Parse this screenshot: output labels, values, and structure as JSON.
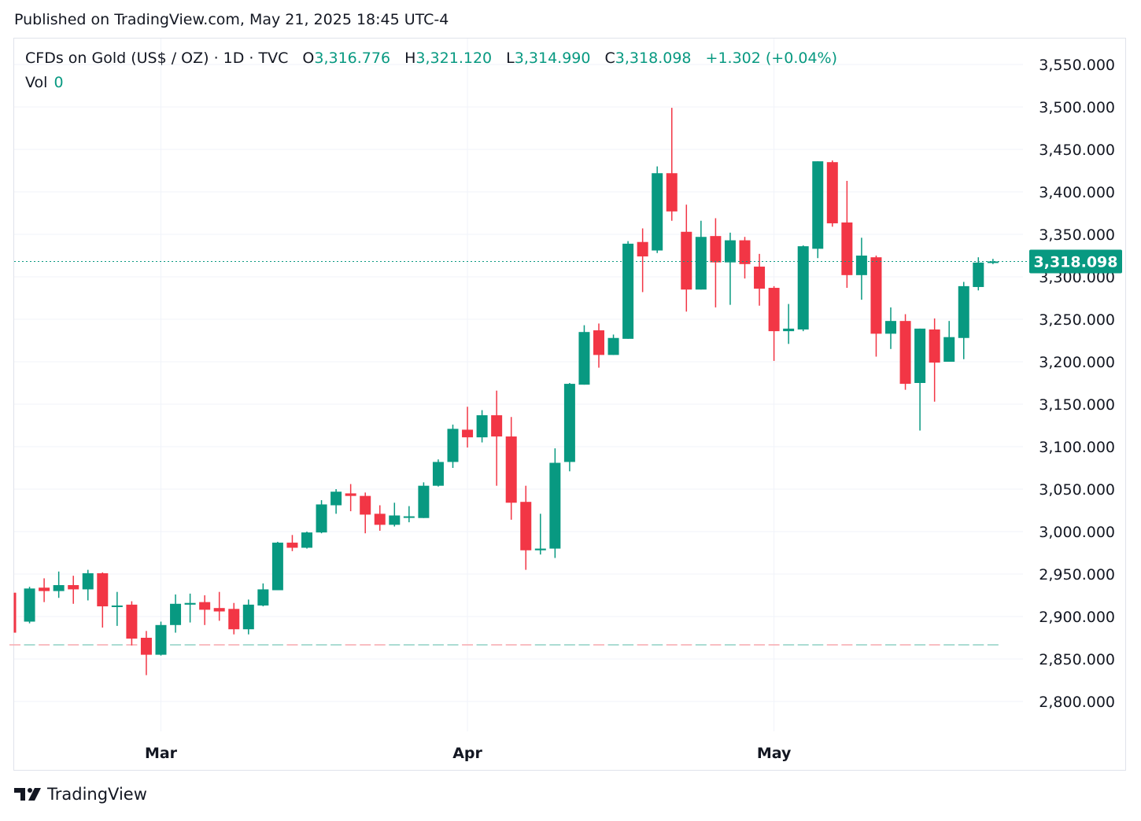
{
  "published": "Published on TradingView.com, May 21, 2025 18:45 UTC-4",
  "legend": {
    "symbol": "CFDs on Gold (US$ / OZ) · 1D · TVC",
    "o_label": "O",
    "o": "3,316.776",
    "h_label": "H",
    "h": "3,321.120",
    "l_label": "L",
    "l": "3,314.990",
    "c_label": "C",
    "c": "3,318.098",
    "change": "+1.302 (+0.04%)",
    "vol_label": "Vol",
    "vol": "0"
  },
  "footer": {
    "brand": "TradingView"
  },
  "colors": {
    "up": "#089981",
    "down": "#F23645",
    "grid": "#f0f3fa",
    "text": "#131722"
  },
  "chart_data": {
    "type": "candlestick",
    "title": "",
    "ylim": [
      2770,
      3570
    ],
    "y_ticks": [
      "3,550.000",
      "3,500.000",
      "3,450.000",
      "3,400.000",
      "3,350.000",
      "3,300.000",
      "3,250.000",
      "3,200.000",
      "3,150.000",
      "3,100.000",
      "3,050.000",
      "3,000.000",
      "2,950.000",
      "2,900.000",
      "2,850.000",
      "2,800.000"
    ],
    "y_tick_values": [
      3550,
      3500,
      3450,
      3400,
      3350,
      3300,
      3250,
      3200,
      3150,
      3100,
      3050,
      3000,
      2950,
      2900,
      2850,
      2800
    ],
    "x_ticks": [
      {
        "label": "Mar",
        "index": 10
      },
      {
        "label": "Apr",
        "index": 31
      },
      {
        "label": "May",
        "index": 52
      }
    ],
    "last_price": 3318.098,
    "last_price_label": "3,318.098",
    "grid": true,
    "candles": [
      [
        2928,
        2928,
        2881,
        2881
      ],
      [
        2894,
        2935,
        2892,
        2933
      ],
      [
        2934,
        2945,
        2917,
        2930
      ],
      [
        2930,
        2953,
        2922,
        2937
      ],
      [
        2937,
        2948,
        2915,
        2932
      ],
      [
        2932,
        2955,
        2919,
        2951
      ],
      [
        2951,
        2952,
        2887,
        2912
      ],
      [
        2912,
        2929,
        2889,
        2913
      ],
      [
        2914,
        2918,
        2866,
        2874
      ],
      [
        2875,
        2883,
        2831,
        2855
      ],
      [
        2855,
        2894,
        2854,
        2890
      ],
      [
        2890,
        2926,
        2881,
        2915
      ],
      [
        2914,
        2927,
        2893,
        2916
      ],
      [
        2917,
        2925,
        2890,
        2908
      ],
      [
        2910,
        2929,
        2895,
        2906
      ],
      [
        2909,
        2916,
        2879,
        2885
      ],
      [
        2885,
        2920,
        2879,
        2914
      ],
      [
        2913,
        2939,
        2912,
        2932
      ],
      [
        2931,
        2988,
        2931,
        2987
      ],
      [
        2987,
        2996,
        2977,
        2981
      ],
      [
        2981,
        3000,
        2980,
        2999
      ],
      [
        2999,
        3037,
        2998,
        3032
      ],
      [
        3031,
        3050,
        3021,
        3047
      ],
      [
        3045,
        3056,
        3024,
        3042
      ],
      [
        3042,
        3046,
        2998,
        3020
      ],
      [
        3021,
        3031,
        3001,
        3008
      ],
      [
        3008,
        3034,
        3006,
        3019
      ],
      [
        3017,
        3030,
        3011,
        3018
      ],
      [
        3016,
        3058,
        3016,
        3054
      ],
      [
        3054,
        3085,
        3053,
        3082
      ],
      [
        3082,
        3126,
        3075,
        3121
      ],
      [
        3120,
        3147,
        3099,
        3111
      ],
      [
        3111,
        3143,
        3105,
        3137
      ],
      [
        3137,
        3166,
        3054,
        3112
      ],
      [
        3112,
        3135,
        3014,
        3034
      ],
      [
        3035,
        3054,
        2955,
        2978
      ],
      [
        2978,
        3021,
        2973,
        2980
      ],
      [
        2980,
        3098,
        2969,
        3081
      ],
      [
        3082,
        3175,
        3071,
        3174
      ],
      [
        3173,
        3243,
        3173,
        3235
      ],
      [
        3237,
        3245,
        3193,
        3208
      ],
      [
        3208,
        3232,
        3208,
        3228
      ],
      [
        3227,
        3342,
        3227,
        3339
      ],
      [
        3341,
        3357,
        3282,
        3324
      ],
      [
        3331,
        3430,
        3328,
        3422
      ],
      [
        3422,
        3499,
        3366,
        3377
      ],
      [
        3353,
        3385,
        3259,
        3285
      ],
      [
        3285,
        3366,
        3285,
        3347
      ],
      [
        3348,
        3369,
        3264,
        3317
      ],
      [
        3317,
        3352,
        3267,
        3343
      ],
      [
        3343,
        3347,
        3298,
        3315
      ],
      [
        3312,
        3327,
        3266,
        3286
      ],
      [
        3287,
        3289,
        3201,
        3236
      ],
      [
        3236,
        3268,
        3221,
        3239
      ],
      [
        3238,
        3337,
        3236,
        3336
      ],
      [
        3333,
        3436,
        3322,
        3436
      ],
      [
        3435,
        3437,
        3359,
        3363
      ],
      [
        3364,
        3413,
        3287,
        3302
      ],
      [
        3302,
        3346,
        3273,
        3325
      ],
      [
        3323,
        3325,
        3206,
        3233
      ],
      [
        3233,
        3264,
        3215,
        3248
      ],
      [
        3248,
        3256,
        3167,
        3174
      ],
      [
        3175,
        3239,
        3119,
        3239
      ],
      [
        3238,
        3251,
        3153,
        3199
      ],
      [
        3200,
        3248,
        3200,
        3229
      ],
      [
        3228,
        3294,
        3203,
        3289
      ],
      [
        3288,
        3323,
        3284,
        3316.776
      ],
      [
        3316.776,
        3321.12,
        3314.99,
        3318.098
      ]
    ]
  }
}
